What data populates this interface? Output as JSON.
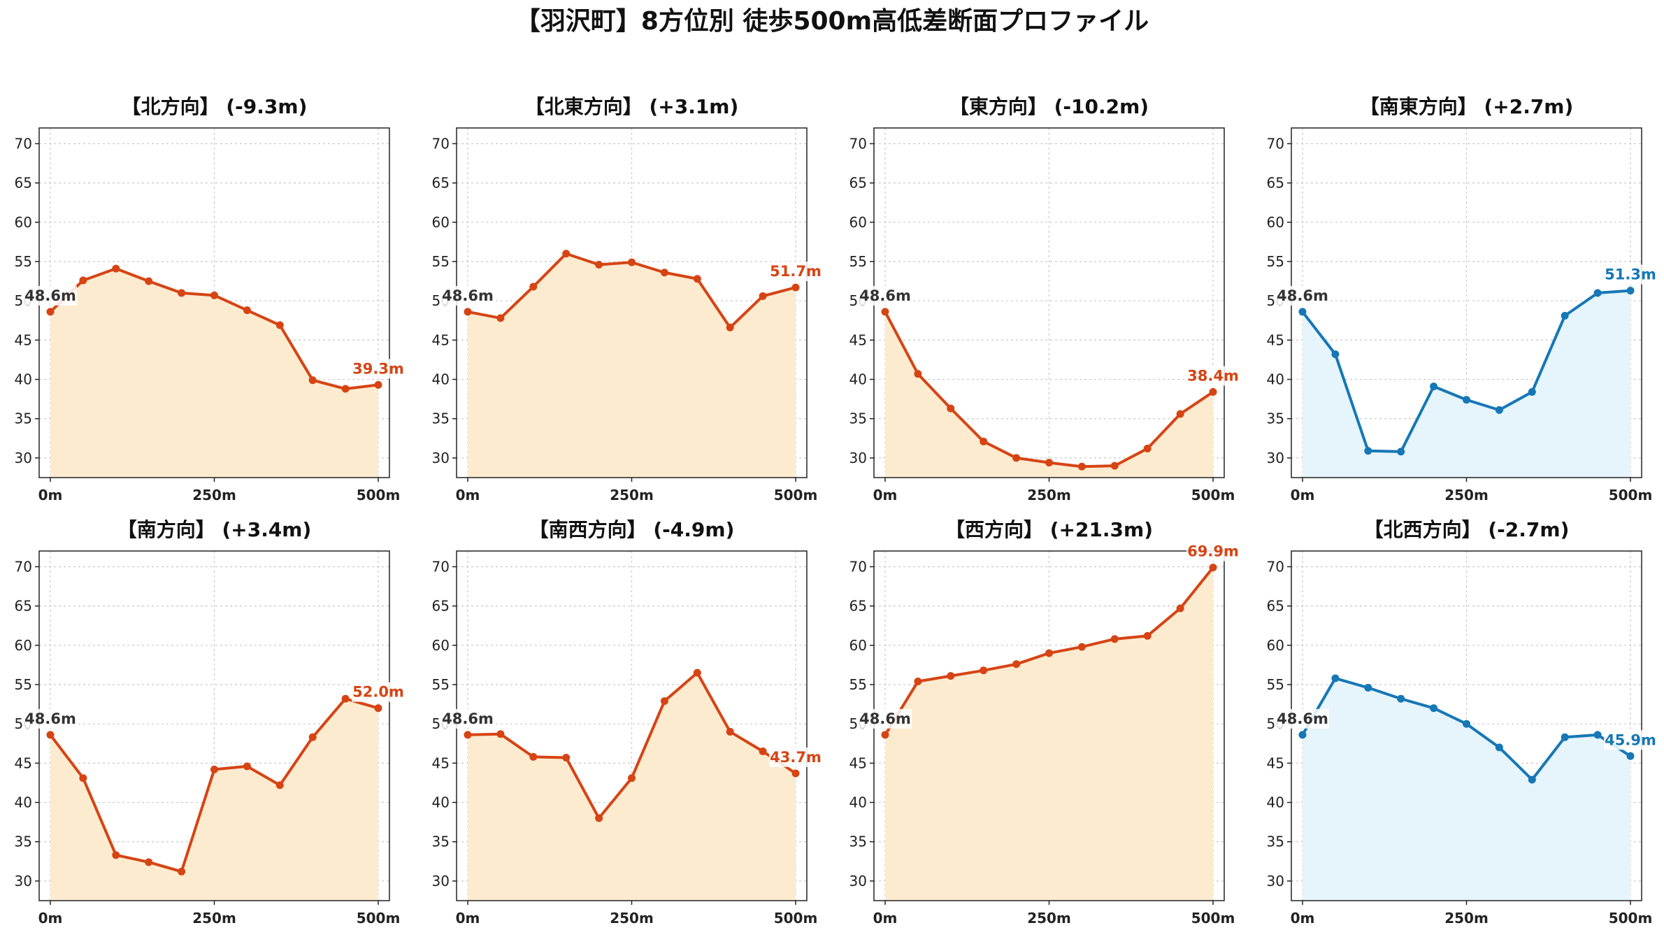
{
  "title": "【羽沢町】8方位別 徒歩500m高低差断面プロファイル",
  "colors": {
    "up_line": "#d64414",
    "up_fill": "#fdebd0",
    "down_line": "#1677b6",
    "down_fill": "#e6f4fb"
  },
  "chart_data": [
    {
      "type": "area",
      "title": "【北方向】 (-9.3m)",
      "x": [
        0,
        50,
        100,
        150,
        200,
        250,
        300,
        350,
        400,
        450,
        500
      ],
      "values": [
        48.6,
        52.6,
        54.1,
        52.5,
        51.0,
        50.7,
        48.8,
        46.9,
        39.9,
        38.8,
        39.3
      ],
      "start_label": "48.6m",
      "end_label": "39.3m",
      "scheme": "up",
      "ylim": [
        27.5,
        72
      ],
      "yticks": [
        30,
        35,
        40,
        45,
        50,
        55,
        60,
        65,
        70
      ],
      "xticks": [
        0,
        250,
        500
      ],
      "xtick_labels": [
        "0m",
        "250m",
        "500m"
      ],
      "grid": true
    },
    {
      "type": "area",
      "title": "【北東方向】 (+3.1m)",
      "x": [
        0,
        50,
        100,
        150,
        200,
        250,
        300,
        350,
        400,
        450,
        500
      ],
      "values": [
        48.6,
        47.8,
        51.8,
        56.0,
        54.6,
        54.9,
        53.6,
        52.8,
        46.6,
        50.6,
        51.7
      ],
      "start_label": "48.6m",
      "end_label": "51.7m",
      "scheme": "up",
      "ylim": [
        27.5,
        72
      ],
      "yticks": [
        30,
        35,
        40,
        45,
        50,
        55,
        60,
        65,
        70
      ],
      "xticks": [
        0,
        250,
        500
      ],
      "xtick_labels": [
        "0m",
        "250m",
        "500m"
      ],
      "grid": true
    },
    {
      "type": "area",
      "title": "【東方向】 (-10.2m)",
      "x": [
        0,
        50,
        100,
        150,
        200,
        250,
        300,
        350,
        400,
        450,
        500
      ],
      "values": [
        48.6,
        40.7,
        36.3,
        32.1,
        30.0,
        29.4,
        28.9,
        29.0,
        31.2,
        35.6,
        38.4
      ],
      "start_label": "48.6m",
      "end_label": "38.4m",
      "scheme": "up",
      "ylim": [
        27.5,
        72
      ],
      "yticks": [
        30,
        35,
        40,
        45,
        50,
        55,
        60,
        65,
        70
      ],
      "xticks": [
        0,
        250,
        500
      ],
      "xtick_labels": [
        "0m",
        "250m",
        "500m"
      ],
      "grid": true
    },
    {
      "type": "area",
      "title": "【南東方向】 (+2.7m)",
      "x": [
        0,
        50,
        100,
        150,
        200,
        250,
        300,
        350,
        400,
        450,
        500
      ],
      "values": [
        48.6,
        43.2,
        30.9,
        30.8,
        39.1,
        37.4,
        36.1,
        38.4,
        48.1,
        51.0,
        51.3
      ],
      "start_label": "48.6m",
      "end_label": "51.3m",
      "scheme": "down",
      "ylim": [
        27.5,
        72
      ],
      "yticks": [
        30,
        35,
        40,
        45,
        50,
        55,
        60,
        65,
        70
      ],
      "xticks": [
        0,
        250,
        500
      ],
      "xtick_labels": [
        "0m",
        "250m",
        "500m"
      ],
      "grid": true
    },
    {
      "type": "area",
      "title": "【南方向】 (+3.4m)",
      "x": [
        0,
        50,
        100,
        150,
        200,
        250,
        300,
        350,
        400,
        450,
        500
      ],
      "values": [
        48.6,
        43.1,
        33.3,
        32.4,
        31.2,
        44.2,
        44.6,
        42.2,
        48.3,
        53.2,
        52.0
      ],
      "start_label": "48.6m",
      "end_label": "52.0m",
      "scheme": "up",
      "ylim": [
        27.5,
        72
      ],
      "yticks": [
        30,
        35,
        40,
        45,
        50,
        55,
        60,
        65,
        70
      ],
      "xticks": [
        0,
        250,
        500
      ],
      "xtick_labels": [
        "0m",
        "250m",
        "500m"
      ],
      "grid": true
    },
    {
      "type": "area",
      "title": "【南西方向】 (-4.9m)",
      "x": [
        0,
        50,
        100,
        150,
        200,
        250,
        300,
        350,
        400,
        450,
        500
      ],
      "values": [
        48.6,
        48.7,
        45.8,
        45.7,
        38.0,
        43.1,
        52.9,
        56.5,
        49.0,
        46.5,
        43.7
      ],
      "start_label": "48.6m",
      "end_label": "43.7m",
      "scheme": "up",
      "ylim": [
        27.5,
        72
      ],
      "yticks": [
        30,
        35,
        40,
        45,
        50,
        55,
        60,
        65,
        70
      ],
      "xticks": [
        0,
        250,
        500
      ],
      "xtick_labels": [
        "0m",
        "250m",
        "500m"
      ],
      "grid": true
    },
    {
      "type": "area",
      "title": "【西方向】 (+21.3m)",
      "x": [
        0,
        50,
        100,
        150,
        200,
        250,
        300,
        350,
        400,
        450,
        500
      ],
      "values": [
        48.6,
        55.4,
        56.1,
        56.8,
        57.6,
        59.0,
        59.8,
        60.8,
        61.2,
        64.7,
        69.9
      ],
      "start_label": "48.6m",
      "end_label": "69.9m",
      "scheme": "up",
      "ylim": [
        27.5,
        72
      ],
      "yticks": [
        30,
        35,
        40,
        45,
        50,
        55,
        60,
        65,
        70
      ],
      "xticks": [
        0,
        250,
        500
      ],
      "xtick_labels": [
        "0m",
        "250m",
        "500m"
      ],
      "grid": true
    },
    {
      "type": "area",
      "title": "【北西方向】 (-2.7m)",
      "x": [
        0,
        50,
        100,
        150,
        200,
        250,
        300,
        350,
        400,
        450,
        500
      ],
      "values": [
        48.6,
        55.8,
        54.6,
        53.2,
        52.0,
        50.0,
        47.0,
        42.9,
        48.3,
        48.6,
        45.9
      ],
      "start_label": "48.6m",
      "end_label": "45.9m",
      "scheme": "down",
      "ylim": [
        27.5,
        72
      ],
      "yticks": [
        30,
        35,
        40,
        45,
        50,
        55,
        60,
        65,
        70
      ],
      "xticks": [
        0,
        250,
        500
      ],
      "xtick_labels": [
        "0m",
        "250m",
        "500m"
      ],
      "grid": true
    }
  ]
}
